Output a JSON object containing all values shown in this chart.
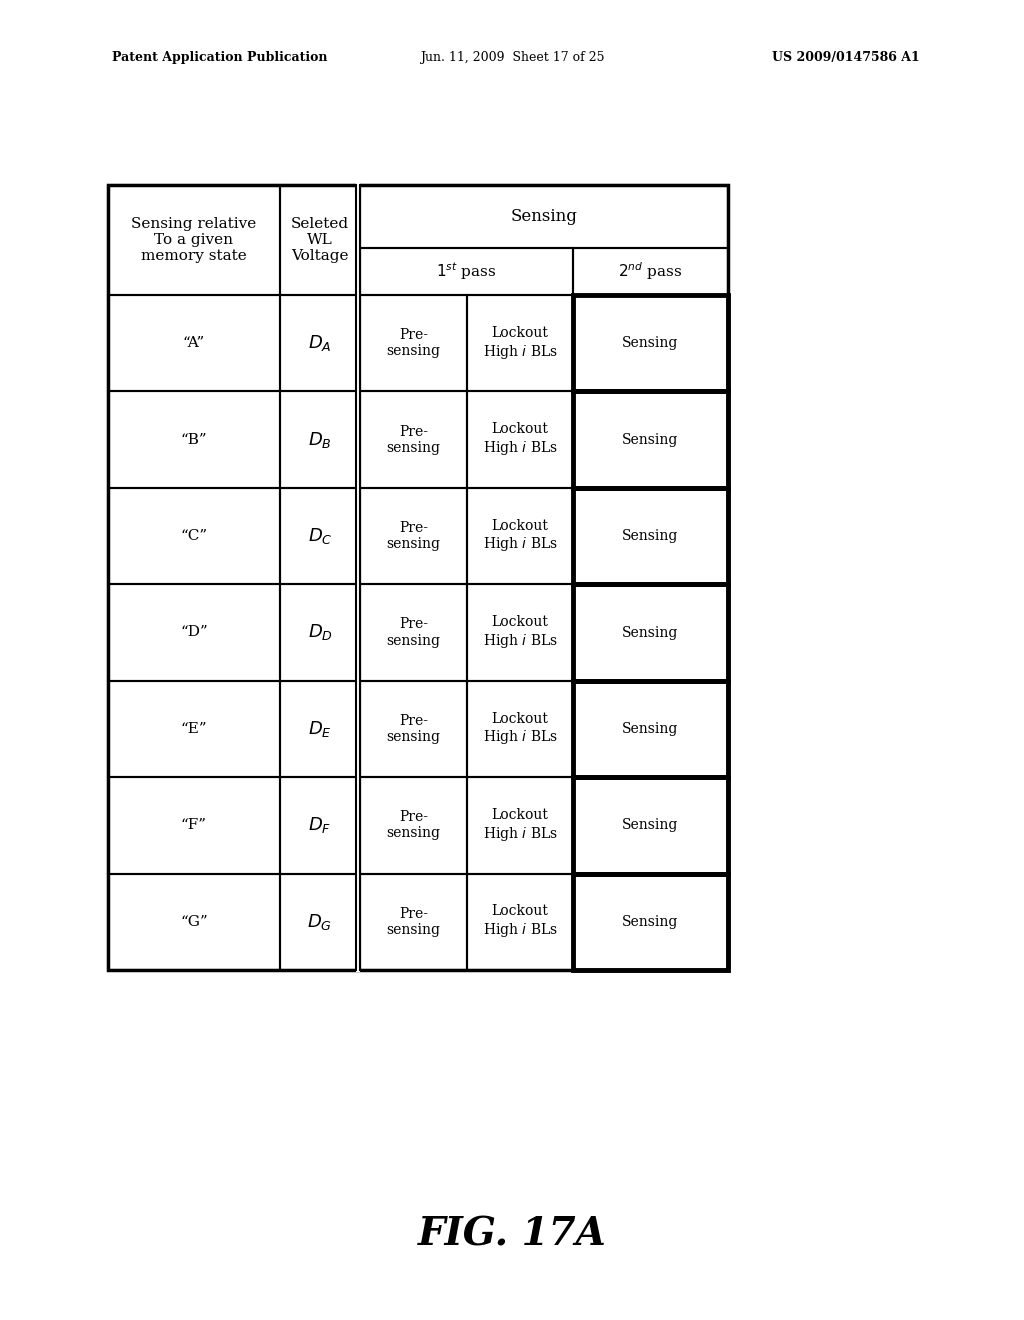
{
  "title_header_left": "Patent Application Publication",
  "title_header_mid": "Jun. 11, 2009  Sheet 17 of 25",
  "title_header_right": "US 2009/0147586 A1",
  "figure_label": "FIG. 17A",
  "background_color": "#ffffff",
  "rows": [
    {
      "state": "“A”",
      "letter": "A"
    },
    {
      "state": "“B”",
      "letter": "B"
    },
    {
      "state": "“C”",
      "letter": "C"
    },
    {
      "state": "“D”",
      "letter": "D"
    },
    {
      "state": "“E”",
      "letter": "E"
    },
    {
      "state": "“F”",
      "letter": "F"
    },
    {
      "state": "“G”",
      "letter": "G"
    }
  ]
}
